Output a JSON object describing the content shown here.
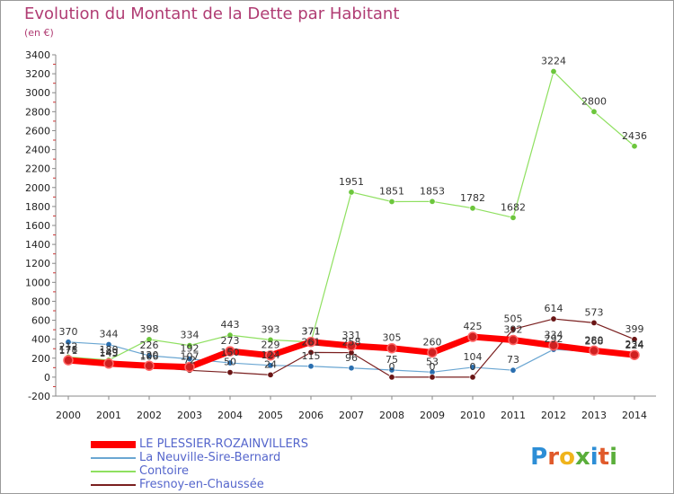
{
  "header": {
    "title": "Evolution du Montant de la Dette par Habitant",
    "unit": "(en €)"
  },
  "logo": {
    "text": "Proxiti",
    "colors": [
      "#2d8ed6",
      "#e05a2b",
      "#f0b41c",
      "#5aae3a",
      "#2d8ed6",
      "#e05a2b",
      "#5aae3a"
    ]
  },
  "chart_data": {
    "type": "line",
    "x": [
      "2000",
      "2001",
      "2002",
      "2003",
      "2004",
      "2005",
      "2006",
      "2007",
      "2008",
      "2009",
      "2010",
      "2011",
      "2012",
      "2013",
      "2014"
    ],
    "ylim": [
      -200,
      3400
    ],
    "yticks": [
      -200,
      0,
      200,
      400,
      600,
      800,
      1000,
      1200,
      1400,
      1600,
      1800,
      2000,
      2200,
      2400,
      2600,
      2800,
      3000,
      3200,
      3400
    ],
    "grid": false,
    "legend_position": "bottom-left",
    "series": [
      {
        "name": "LE PLESSIER-ROZAINVILLERS",
        "color": "#ff0000",
        "marker": "#d02020",
        "width": 7,
        "values": [
          178,
          143,
          120,
          107,
          273,
          229,
          371,
          331,
          305,
          260,
          425,
          392,
          334,
          280,
          234
        ]
      },
      {
        "name": "La Neuville-Sire-Bernard",
        "color": "#6aa6d2",
        "marker": "#2a6fb0",
        "width": 1.2,
        "values": [
          370,
          344,
          226,
          192,
          150,
          124,
          115,
          96,
          75,
          53,
          104,
          73,
          292,
          268,
          224
        ]
      },
      {
        "name": "Contoire",
        "color": "#8fe060",
        "marker": "#6cc63c",
        "width": 1.2,
        "values": [
          212,
          180,
          398,
          334,
          443,
          393,
          371,
          1951,
          1851,
          1853,
          1782,
          1682,
          3224,
          2800,
          2436
        ]
      },
      {
        "name": "Fresnoy-en-Chaussée",
        "color": "#7a1f1f",
        "marker": "#6a1515",
        "width": 1.2,
        "values": [
          171,
          149,
          106,
          72,
          50,
          24,
          261,
          258,
          0,
          0,
          0,
          505,
          614,
          573,
          399
        ]
      }
    ]
  }
}
